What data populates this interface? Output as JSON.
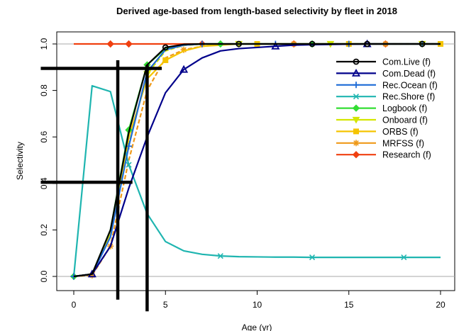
{
  "chart_data": {
    "type": "line",
    "title": "Derived age-based from length-based selectivity by fleet in 2018",
    "xlabel": "Age (yr)",
    "ylabel": "Selectivity",
    "xlim": [
      0,
      20
    ],
    "ylim": [
      0,
      1.0
    ],
    "xticks": [
      0,
      5,
      10,
      15,
      20
    ],
    "yticks": [
      0.0,
      0.2,
      0.4,
      0.6,
      0.8,
      1.0
    ],
    "x": [
      0,
      1,
      2,
      3,
      4,
      5,
      6,
      7,
      8,
      9,
      10,
      11,
      12,
      13,
      14,
      15,
      16,
      17,
      18,
      19,
      20
    ],
    "legend_position": "right",
    "series": [
      {
        "name": "Com.Live (f)",
        "color": "#000000",
        "marker": "circle",
        "marker_every": [
          5,
          9,
          13,
          16,
          19
        ],
        "values": [
          0.0,
          0.01,
          0.2,
          0.62,
          0.91,
          0.985,
          0.998,
          1.0,
          1.0,
          1.0,
          1.0,
          1.0,
          1.0,
          1.0,
          1.0,
          1.0,
          1.0,
          1.0,
          1.0,
          1.0,
          1.0
        ]
      },
      {
        "name": "Com.Dead (f)",
        "color": "#00008b",
        "marker": "triangle",
        "marker_every": [
          1,
          6,
          11,
          16
        ],
        "values": [
          0.0,
          0.01,
          0.13,
          0.38,
          0.6,
          0.79,
          0.89,
          0.94,
          0.97,
          0.98,
          0.985,
          0.99,
          0.995,
          0.997,
          0.998,
          0.999,
          1.0,
          1.0,
          1.0,
          1.0,
          1.0
        ]
      },
      {
        "name": "Rec.Ocean (f)",
        "color": "#1e6bd6",
        "marker": "plus",
        "marker_every": [
          0,
          3,
          7,
          11,
          15,
          19
        ],
        "values": [
          0.0,
          0.01,
          0.17,
          0.56,
          0.88,
          0.975,
          0.995,
          1.0,
          1.0,
          1.0,
          1.0,
          1.0,
          1.0,
          1.0,
          1.0,
          1.0,
          1.0,
          1.0,
          1.0,
          1.0,
          1.0
        ]
      },
      {
        "name": "Rec.Shore (f)",
        "color": "#1fb5b0",
        "marker": "x",
        "marker_every": [
          3,
          8,
          13,
          18
        ],
        "values": [
          0.0,
          0.82,
          0.795,
          0.48,
          0.27,
          0.15,
          0.11,
          0.095,
          0.088,
          0.085,
          0.084,
          0.083,
          0.083,
          0.082,
          0.082,
          0.082,
          0.082,
          0.082,
          0.082,
          0.082,
          0.082
        ]
      },
      {
        "name": "Logbook (f)",
        "color": "#33dd33",
        "marker": "diamond",
        "marker_every": [
          0,
          3,
          4,
          8,
          13
        ],
        "values": [
          0.0,
          0.01,
          0.2,
          0.63,
          0.91,
          0.98,
          0.997,
          1.0,
          1.0,
          1.0,
          1.0,
          1.0,
          1.0,
          1.0,
          1.0,
          1.0,
          1.0,
          1.0,
          1.0,
          1.0,
          1.0
        ]
      },
      {
        "name": "Onboard (f)",
        "color": "#d4e600",
        "marker": "triangle-down",
        "marker_every": [
          4,
          9,
          14,
          19
        ],
        "values": [
          0.0,
          0.01,
          0.18,
          0.57,
          0.87,
          0.97,
          0.994,
          0.999,
          1.0,
          1.0,
          1.0,
          1.0,
          1.0,
          1.0,
          1.0,
          1.0,
          1.0,
          1.0,
          1.0,
          1.0,
          1.0
        ]
      },
      {
        "name": "ORBS (f)",
        "color": "#f5c400",
        "marker": "square",
        "marker_every": [
          5,
          10,
          15,
          20
        ],
        "values": [
          0.0,
          0.01,
          0.18,
          0.6,
          0.85,
          0.93,
          0.97,
          0.99,
          0.995,
          1.0,
          1.0,
          1.0,
          1.0,
          1.0,
          1.0,
          1.0,
          1.0,
          1.0,
          1.0,
          1.0,
          1.0
        ]
      },
      {
        "name": "MRFSS (f)",
        "color": "#ef9a1a",
        "marker": "asterisk",
        "marker_every": [
          1,
          2,
          6,
          12,
          17
        ],
        "values": [
          0.0,
          0.005,
          0.13,
          0.5,
          0.8,
          0.94,
          0.975,
          0.99,
          0.997,
          1.0,
          1.0,
          1.0,
          1.0,
          1.0,
          1.0,
          1.0,
          1.0,
          1.0,
          1.0,
          1.0,
          1.0
        ]
      },
      {
        "name": "Research (f)",
        "color": "#f04010",
        "marker": "diamond",
        "marker_every": [
          2,
          3,
          7,
          12,
          17
        ],
        "values": [
          1.0,
          1.0,
          1.0,
          1.0,
          1.0,
          1.0,
          1.0,
          1.0,
          1.0,
          1.0,
          1.0,
          1.0,
          1.0,
          1.0,
          1.0,
          1.0,
          1.0,
          1.0,
          1.0,
          1.0,
          1.0
        ]
      }
    ],
    "reference_lines": {
      "horizontal": [
        0.0,
        1.0
      ],
      "color": "#aaaaaa"
    },
    "drawn_annotations": [
      {
        "kind": "vertical",
        "x": 2.4,
        "y_from": -0.1,
        "y_to": 0.93
      },
      {
        "kind": "vertical",
        "x": 4.0,
        "y_from": -0.15,
        "y_to": 0.91
      },
      {
        "kind": "horizontal",
        "y": 0.895,
        "x_from": -1.8,
        "x_to": 4.8
      },
      {
        "kind": "horizontal",
        "y": 0.405,
        "x_from": -1.8,
        "x_to": 3.2
      }
    ]
  }
}
